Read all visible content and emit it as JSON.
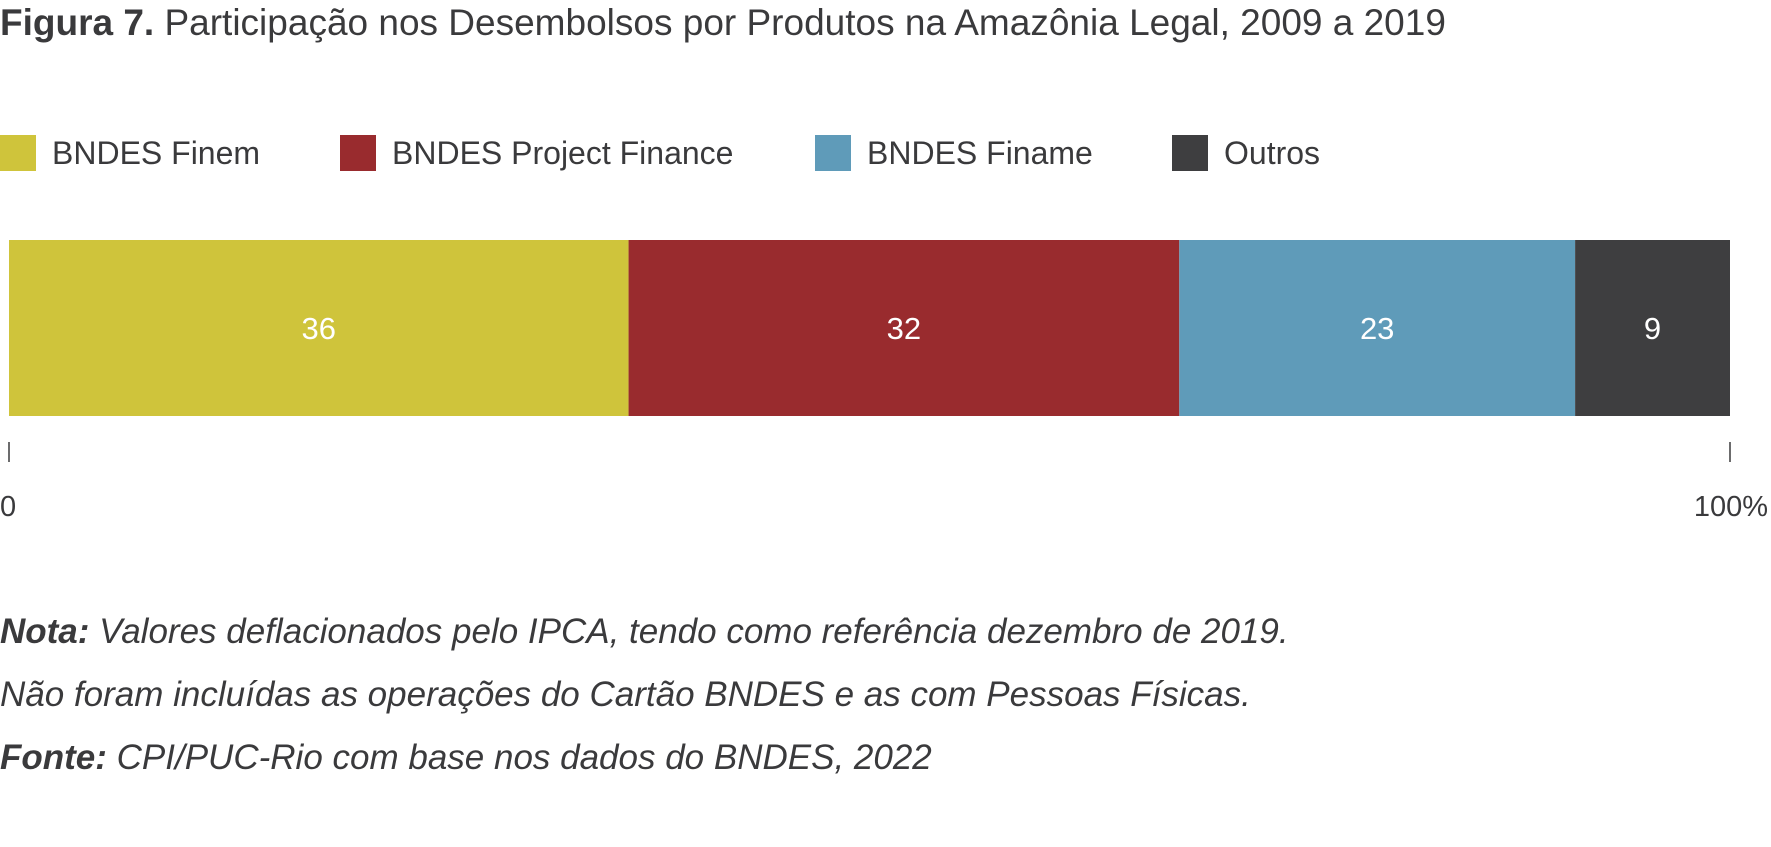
{
  "title": {
    "label": "Figura 7.",
    "text": "Participação nos Desembolsos por Produtos na Amazônia Legal, 2009 a 2019"
  },
  "colors": {
    "text": "#3a3a3c",
    "finem": "#cfc43b",
    "project_finance": "#992b2e",
    "finame": "#5f9bb9",
    "outros": "#3e3e40",
    "bar_label": "#ffffff"
  },
  "chart_data": {
    "type": "bar",
    "orientation": "horizontal",
    "stacked": true,
    "categories": [
      ""
    ],
    "series": [
      {
        "name": "BNDES Finem",
        "values": [
          36
        ],
        "color": "#cfc43b"
      },
      {
        "name": "BNDES Project Finance",
        "values": [
          32
        ],
        "color": "#992b2e"
      },
      {
        "name": "BNDES Finame",
        "values": [
          23
        ],
        "color": "#5f9bb9"
      },
      {
        "name": "Outros",
        "values": [
          9
        ],
        "color": "#3e3e40"
      }
    ],
    "data_labels": [
      "36",
      "32",
      "23",
      "9"
    ],
    "xlim": [
      0,
      100
    ],
    "x_ticks": [
      "0",
      "100%"
    ],
    "legend_position": "top-left",
    "grid": false
  },
  "notes": {
    "nota_label": "Nota:",
    "nota_text": " Valores deflacionados pelo IPCA, tendo como referência dezembro de 2019.",
    "line2": "Não foram incluídas as operações do Cartão BNDES e as com Pessoas Físicas.",
    "fonte_label": "Fonte:",
    "fonte_text": " CPI/PUC-Rio com base nos dados do BNDES, 2022"
  }
}
